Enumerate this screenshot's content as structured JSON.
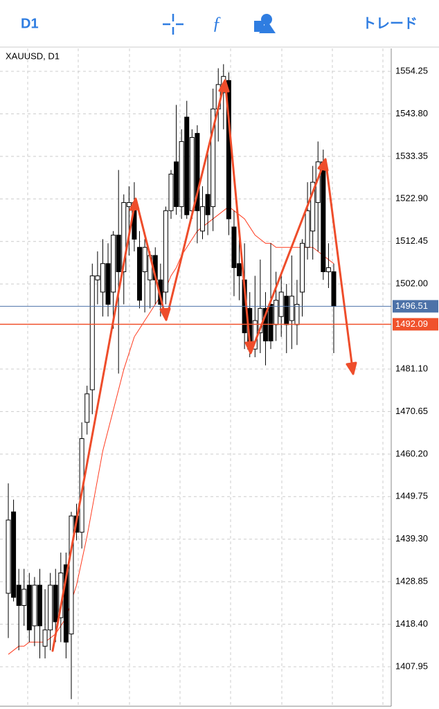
{
  "toolbar": {
    "timeframe": "D1",
    "trade": "トレード"
  },
  "chart_data": {
    "type": "candlestick",
    "title": "XAUUSD, D1",
    "open": [
      1426,
      1446,
      1428,
      1423,
      1428,
      1418,
      1428,
      1413,
      1417,
      1428,
      1420,
      1433,
      1416,
      1445,
      1441,
      1468,
      1476,
      1503,
      1500,
      1507,
      1500,
      1514,
      1505,
      1521,
      1522,
      1511,
      1505,
      1503,
      1509,
      1503,
      1500,
      1520,
      1532,
      1521,
      1543,
      1520,
      1539,
      1515,
      1524,
      1521,
      1545,
      1549,
      1552,
      1516,
      1507,
      1503,
      1496,
      1486,
      1490,
      1496,
      1497,
      1492,
      1494,
      1499,
      1493,
      1492,
      1500,
      1511,
      1515,
      1522,
      1532,
      1505,
      1505
    ],
    "high": [
      1453,
      1449,
      1432,
      1432,
      1431,
      1430,
      1432,
      1427,
      1431,
      1432,
      1436,
      1436,
      1446,
      1448,
      1468,
      1477,
      1507,
      1510,
      1513,
      1512,
      1515,
      1530,
      1524,
      1526,
      1527,
      1515,
      1513,
      1510,
      1511,
      1507,
      1521,
      1530,
      1546,
      1540,
      1547,
      1540,
      1541,
      1526,
      1535,
      1550,
      1555,
      1556,
      1554,
      1520,
      1514,
      1512,
      1500,
      1504,
      1508,
      1500,
      1512,
      1505,
      1505,
      1502,
      1509,
      1503,
      1513,
      1527,
      1531,
      1537,
      1535,
      1512,
      1507
    ],
    "low": [
      1415,
      1424,
      1412,
      1418,
      1414,
      1413,
      1410,
      1410,
      1412,
      1414,
      1414,
      1410,
      1400,
      1439,
      1437,
      1465,
      1470,
      1497,
      1494,
      1494,
      1491,
      1480,
      1497,
      1509,
      1510,
      1496,
      1495,
      1496,
      1497,
      1494,
      1497,
      1518,
      1519,
      1518,
      1518,
      1518,
      1512,
      1513,
      1514,
      1515,
      1537,
      1540,
      1514,
      1499,
      1498,
      1486,
      1484,
      1484,
      1485,
      1482,
      1486,
      1488,
      1489,
      1485,
      1486,
      1487,
      1494,
      1508,
      1508,
      1510,
      1503,
      1501,
      1485
    ],
    "close": [
      1444,
      1425,
      1423,
      1427,
      1417,
      1428,
      1418,
      1417,
      1428,
      1419,
      1431,
      1414,
      1445,
      1441,
      1464,
      1475,
      1504,
      1504,
      1507,
      1497,
      1514,
      1505,
      1522,
      1522,
      1513,
      1498,
      1511,
      1509,
      1503,
      1497,
      1520,
      1529,
      1521,
      1537,
      1519,
      1538,
      1520,
      1521,
      1519,
      1545,
      1551,
      1553,
      1518,
      1506,
      1504,
      1490,
      1486,
      1493,
      1496,
      1488,
      1488,
      1498,
      1500,
      1492,
      1499,
      1497,
      1512,
      1520,
      1527,
      1532,
      1505,
      1506,
      1496.51
    ],
    "overlay": {
      "color": "#ff3b1f",
      "values": [
        1411,
        1412,
        1413,
        1413,
        1414,
        1414,
        1414,
        1414,
        1415,
        1416,
        1418,
        1420,
        1424,
        1428,
        1434,
        1440,
        1447,
        1454,
        1461,
        1466,
        1471,
        1476,
        1481,
        1485,
        1489,
        1491,
        1493,
        1495,
        1497,
        1499,
        1501,
        1504,
        1506,
        1509,
        1511,
        1513,
        1515,
        1516,
        1517,
        1518,
        1519,
        1520,
        1521,
        1520,
        1519,
        1518,
        1516,
        1514,
        1513,
        1512,
        1512,
        1511,
        1511,
        1511,
        1511,
        1511,
        1511,
        1511,
        1511,
        1510,
        1509,
        1508,
        1507
      ]
    },
    "ylim": [
      1398.25,
      1559.86
    ],
    "yticks": [
      1554.25,
      {
        "value": 1543.8,
        "label": "1543.80"
      },
      1533.35,
      {
        "value": 1522.9,
        "label": "1522.90"
      },
      1512.45,
      {
        "value": 1502.0,
        "label": "1502.00"
      },
      {
        "value": 1481.1,
        "label": "1481.10"
      },
      1470.65,
      {
        "value": 1460.2,
        "label": "1460.20"
      },
      1449.75,
      {
        "value": 1439.3,
        "label": "1439.30"
      },
      1428.85,
      {
        "value": 1418.4,
        "label": "1418.40"
      },
      1407.95
    ],
    "grid": true,
    "price_lines": [
      {
        "value": 1496.51,
        "color": "#4d72a8"
      },
      {
        "value": 1492.09,
        "color": "#f0522c"
      }
    ]
  }
}
